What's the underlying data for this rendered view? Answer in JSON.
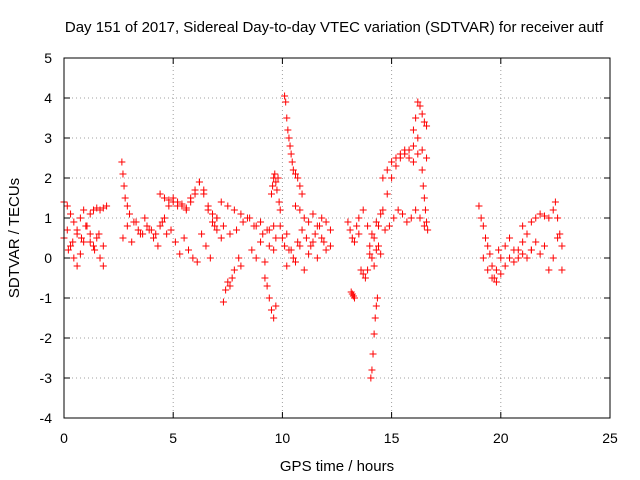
{
  "chart_data": {
    "type": "scatter",
    "title": "Day 151 of 2017, Sidereal Day-to-day VTEC variation (SDTVAR) for receiver autf",
    "xlabel": "GPS time / hours",
    "ylabel": "SDTVAR / TECUs",
    "xlim": [
      0,
      25
    ],
    "ylim": [
      -4,
      5
    ],
    "xticks": [
      "0",
      "5",
      "10",
      "15",
      "20",
      "25"
    ],
    "yticks": [
      "-4",
      "-3",
      "-2",
      "-1",
      "0",
      "1",
      "2",
      "3",
      "4",
      "5"
    ],
    "grid": true,
    "marker": "+",
    "series_color": "#ff0000",
    "series": [
      {
        "name": "SDTVAR",
        "segments": [
          {
            "x": [
              0.0,
              0.15,
              0.3,
              0.45,
              0.6,
              0.75,
              0.9,
              1.05,
              1.2,
              1.35,
              1.5,
              1.65,
              1.8,
              1.95
            ],
            "y": [
              1.4,
              1.3,
              1.1,
              0.9,
              0.7,
              1.0,
              1.2,
              0.8,
              1.1,
              1.2,
              1.25,
              1.2,
              1.25,
              1.3
            ]
          },
          {
            "x": [
              0.0,
              0.15,
              0.3,
              0.45,
              0.6,
              0.75,
              0.9,
              1.05,
              1.2,
              1.35,
              1.5,
              1.65,
              1.8
            ],
            "y": [
              0.5,
              0.7,
              0.3,
              0.0,
              -0.2,
              0.1,
              0.4,
              0.8,
              0.6,
              0.3,
              0.5,
              0.0,
              -0.2
            ]
          },
          {
            "x": [
              0.2,
              0.4,
              0.6,
              0.8,
              1.0,
              1.2,
              1.4,
              1.6,
              1.8
            ],
            "y": [
              0.2,
              0.4,
              0.6,
              0.5,
              0.8,
              0.4,
              0.2,
              0.6,
              0.3
            ]
          },
          {
            "x": [
              2.65,
              2.7,
              2.75,
              2.8,
              2.9,
              3.0,
              3.2,
              3.4,
              3.6,
              3.8,
              4.0,
              4.2,
              4.4,
              4.6,
              4.8,
              5.0,
              5.2,
              5.4,
              5.6,
              5.8,
              6.0,
              6.2,
              6.4,
              6.6,
              6.8,
              7.0
            ],
            "y": [
              2.4,
              2.1,
              1.8,
              1.5,
              1.3,
              1.1,
              0.9,
              0.7,
              0.6,
              0.8,
              0.7,
              0.6,
              0.8,
              1.0,
              1.3,
              1.5,
              1.4,
              1.3,
              1.25,
              1.4,
              1.6,
              1.9,
              1.7,
              1.3,
              1.1,
              1.0
            ]
          },
          {
            "x": [
              2.7,
              2.9,
              3.1,
              3.3,
              3.5,
              3.7,
              3.9,
              4.1,
              4.3,
              4.5,
              4.7,
              4.9,
              5.1,
              5.3,
              5.5,
              5.7,
              5.9,
              6.1,
              6.3,
              6.5,
              6.7,
              6.9
            ],
            "y": [
              0.5,
              0.8,
              0.4,
              0.9,
              0.6,
              1.0,
              0.7,
              0.5,
              0.3,
              0.9,
              0.6,
              0.7,
              0.4,
              0.1,
              0.5,
              0.2,
              0.0,
              -0.1,
              0.6,
              0.3,
              0.0,
              0.8
            ]
          },
          {
            "x": [
              4.4,
              4.6,
              4.8,
              5.0,
              5.2,
              5.4,
              5.6,
              5.8,
              6.0,
              6.2,
              6.4,
              6.6,
              6.8,
              7.0,
              7.2
            ],
            "y": [
              1.6,
              1.5,
              1.45,
              1.4,
              1.3,
              1.35,
              1.2,
              1.5,
              1.7,
              1.9,
              1.6,
              1.2,
              0.9,
              0.7,
              0.5
            ]
          },
          {
            "x": [
              7.0,
              7.3,
              7.6,
              7.9,
              8.2,
              8.5,
              8.8,
              9.1,
              9.4,
              9.7
            ],
            "y": [
              1.0,
              0.8,
              0.6,
              0.7,
              0.9,
              1.0,
              0.8,
              0.6,
              0.7,
              0.5
            ]
          },
          {
            "x": [
              7.3,
              7.4,
              7.5,
              7.6,
              7.7,
              7.8,
              8.0,
              8.1
            ],
            "y": [
              -1.1,
              -0.8,
              -0.6,
              -0.7,
              -0.5,
              -0.3,
              0.0,
              -0.2
            ]
          },
          {
            "x": [
              7.2,
              7.5,
              7.8,
              8.1,
              8.4,
              8.7,
              9.0,
              9.3,
              9.6
            ],
            "y": [
              1.4,
              1.3,
              1.2,
              1.1,
              1.0,
              0.8,
              0.9,
              0.7,
              0.8
            ]
          },
          {
            "x": [
              8.6,
              8.8,
              9.0,
              9.2,
              9.4,
              9.6
            ],
            "y": [
              0.2,
              0.0,
              0.4,
              -0.1,
              0.3,
              0.2
            ]
          },
          {
            "x": [
              9.5,
              9.55,
              9.6,
              9.65,
              9.7,
              9.75,
              9.8,
              9.85,
              9.9
            ],
            "y": [
              1.6,
              1.8,
              2.0,
              2.1,
              1.9,
              1.7,
              2.0,
              1.4,
              1.2
            ]
          },
          {
            "x": [
              9.2,
              9.3,
              9.4,
              9.5,
              9.6,
              9.7
            ],
            "y": [
              -0.5,
              -0.7,
              -1.0,
              -1.3,
              -1.5,
              -1.2
            ]
          },
          {
            "x": [
              9.9,
              10.0,
              10.1,
              10.2,
              10.3,
              10.5,
              10.7,
              10.9,
              11.1,
              11.3,
              11.5,
              11.7,
              11.9
            ],
            "y": [
              0.8,
              0.5,
              0.3,
              0.6,
              0.2,
              0.0,
              0.4,
              0.7,
              0.5,
              0.3,
              0.6,
              0.8,
              0.4
            ]
          },
          {
            "x": [
              10.1,
              10.15,
              10.2,
              10.25,
              10.3,
              10.35,
              10.4,
              10.45,
              10.5,
              10.6,
              10.7,
              10.8,
              10.9
            ],
            "y": [
              4.05,
              3.9,
              3.5,
              3.2,
              3.0,
              2.8,
              2.6,
              2.4,
              2.2,
              2.1,
              2.0,
              1.8,
              1.6
            ]
          },
          {
            "x": [
              10.6,
              10.8,
              11.0,
              11.2,
              11.4,
              11.6,
              11.8,
              12.0,
              12.2
            ],
            "y": [
              1.3,
              1.2,
              1.0,
              0.9,
              1.1,
              0.8,
              1.0,
              0.9,
              0.7
            ]
          },
          {
            "x": [
              10.2,
              10.4,
              10.6,
              10.8,
              11.0,
              11.2,
              11.4,
              11.6,
              11.8,
              12.0,
              12.2
            ],
            "y": [
              -0.2,
              0.2,
              -0.1,
              0.3,
              -0.3,
              0.1,
              0.4,
              0.0,
              0.5,
              0.2,
              0.3
            ]
          },
          {
            "x": [
              13.0,
              13.1,
              13.2,
              13.3,
              13.4,
              13.5
            ],
            "y": [
              0.9,
              0.7,
              0.5,
              0.4,
              0.8,
              0.6
            ]
          },
          {
            "x": [
              13.15,
              13.2,
              13.25,
              13.3
            ],
            "y": [
              -0.85,
              -0.9,
              -0.95,
              -1.0
            ]
          },
          {
            "x": [
              13.6,
              13.7,
              13.8,
              13.9,
              14.0,
              14.1,
              14.2,
              14.3,
              14.4,
              14.5
            ],
            "y": [
              -0.3,
              -0.4,
              -0.5,
              -0.3,
              0.1,
              0.0,
              -0.2,
              0.2,
              0.3,
              0.1
            ]
          },
          {
            "x": [
              14.05,
              14.1,
              14.15,
              14.2,
              14.25,
              14.3,
              14.35
            ],
            "y": [
              -3.0,
              -2.8,
              -2.4,
              -1.9,
              -1.5,
              -1.2,
              -1.0
            ]
          },
          {
            "x": [
              13.5,
              13.7,
              13.9,
              14.1,
              14.3,
              14.5,
              14.7,
              14.9,
              15.1,
              15.3,
              15.5,
              15.7,
              15.9,
              16.1,
              16.3,
              16.5
            ],
            "y": [
              1.0,
              1.2,
              0.8,
              0.6,
              0.9,
              1.1,
              0.7,
              0.8,
              1.0,
              1.2,
              1.1,
              0.9,
              1.0,
              1.2,
              1.0,
              0.8
            ]
          },
          {
            "x": [
              14.0,
              14.2,
              14.4,
              14.6,
              14.8,
              15.0,
              15.2,
              15.4,
              15.6,
              15.8,
              16.0,
              16.2
            ],
            "y": [
              0.3,
              0.5,
              0.8,
              1.2,
              1.6,
              2.0,
              2.3,
              2.5,
              2.6,
              2.7,
              2.8,
              3.0
            ]
          },
          {
            "x": [
              14.6,
              14.8,
              15.0,
              15.2,
              15.4,
              15.6,
              15.8,
              16.0,
              16.2,
              16.4,
              16.6
            ],
            "y": [
              2.0,
              2.2,
              2.4,
              2.5,
              2.6,
              2.7,
              2.5,
              2.4,
              2.6,
              2.7,
              2.5
            ]
          },
          {
            "x": [
              16.0,
              16.1,
              16.2,
              16.3,
              16.4,
              16.5,
              16.6
            ],
            "y": [
              3.2,
              3.5,
              3.9,
              3.8,
              3.6,
              3.4,
              3.3
            ]
          },
          {
            "x": [
              16.4,
              16.45,
              16.5,
              16.55,
              16.6,
              16.65
            ],
            "y": [
              2.2,
              1.8,
              1.5,
              1.2,
              0.9,
              0.7
            ]
          },
          {
            "x": [
              19.0,
              19.1,
              19.2,
              19.3,
              19.4,
              19.5,
              19.6,
              19.7,
              19.8,
              19.9,
              20.0,
              20.2,
              20.4,
              20.6,
              20.8,
              21.0
            ],
            "y": [
              1.3,
              1.0,
              0.8,
              0.5,
              0.3,
              0.1,
              -0.2,
              -0.5,
              -0.3,
              0.2,
              0.0,
              0.3,
              0.5,
              0.2,
              0.0,
              0.4
            ]
          },
          {
            "x": [
              19.2,
              19.4,
              19.6,
              19.8,
              20.0,
              20.2,
              20.4,
              20.6,
              20.8,
              21.0,
              21.2,
              21.4
            ],
            "y": [
              0.0,
              -0.3,
              -0.5,
              -0.6,
              -0.4,
              -0.2,
              0.0,
              -0.1,
              0.2,
              0.1,
              0.0,
              0.2
            ]
          },
          {
            "x": [
              21.0,
              21.2,
              21.4,
              21.6,
              21.8,
              22.0,
              22.2,
              22.4,
              22.5,
              22.6,
              22.7,
              22.8
            ],
            "y": [
              0.8,
              0.6,
              0.9,
              1.0,
              1.1,
              1.05,
              1.0,
              1.2,
              1.4,
              1.0,
              0.6,
              0.3
            ]
          },
          {
            "x": [
              21.4,
              21.6,
              21.8,
              22.0,
              22.2,
              22.4,
              22.6,
              22.8
            ],
            "y": [
              0.2,
              0.4,
              0.1,
              0.3,
              -0.3,
              0.0,
              0.5,
              -0.3
            ]
          }
        ]
      }
    ]
  }
}
